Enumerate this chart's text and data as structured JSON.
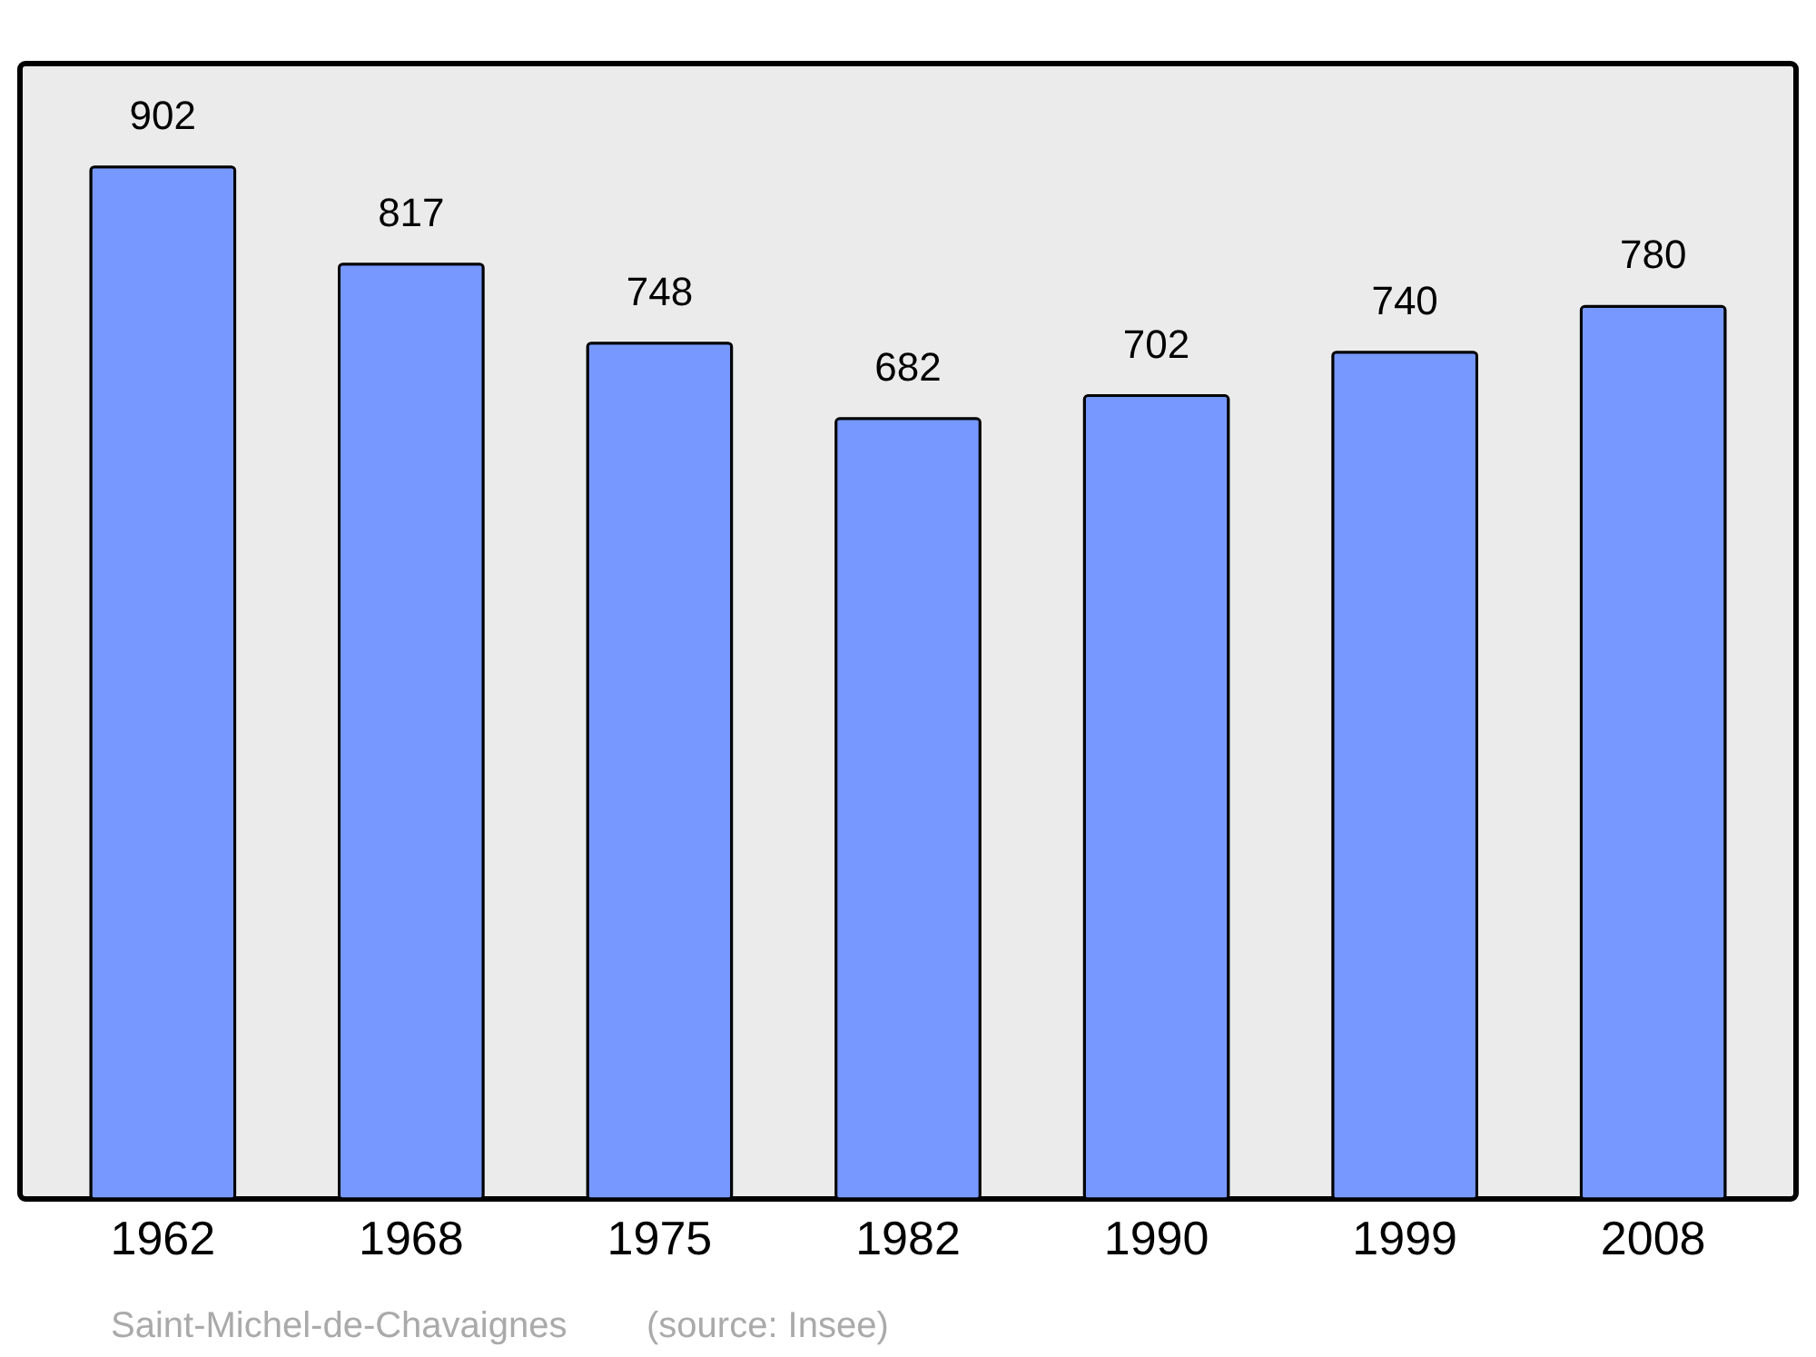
{
  "chart_data": {
    "type": "bar",
    "categories": [
      "1962",
      "1968",
      "1975",
      "1982",
      "1990",
      "1999",
      "2008"
    ],
    "values": [
      902,
      817,
      748,
      682,
      702,
      740,
      780
    ],
    "color": "#7799ff",
    "data_labels": true,
    "grid": false,
    "annotations": [
      "Saint-Michel-de-Chavaignes",
      "(source: Insee)"
    ]
  }
}
